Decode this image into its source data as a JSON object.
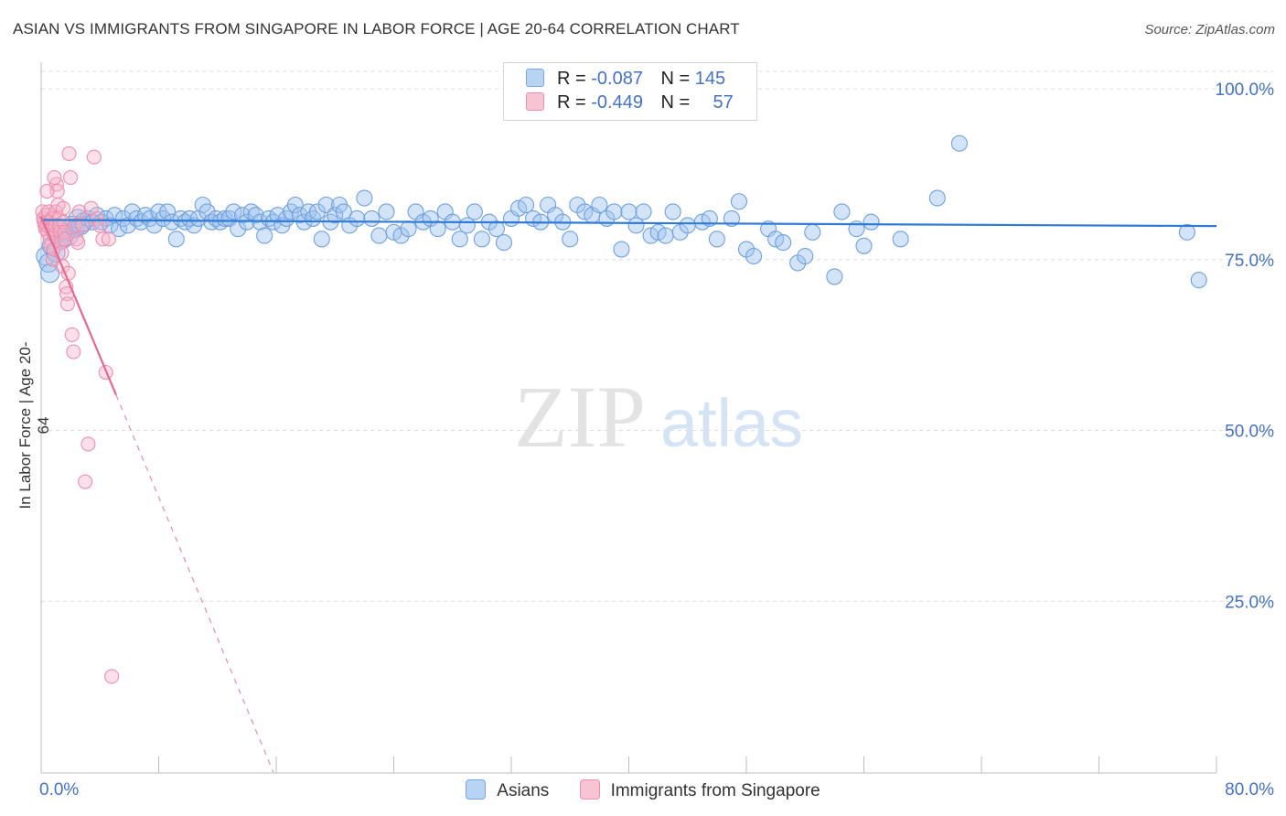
{
  "title": "ASIAN VS IMMIGRANTS FROM SINGAPORE IN LABOR FORCE | AGE 20-64 CORRELATION CHART",
  "source": "Source: ZipAtlas.com",
  "watermark": {
    "zip": "ZIP",
    "atlas": "atlas"
  },
  "legend": {
    "r_label": "R =",
    "n_label": "N =",
    "series": [
      {
        "name": "Asians",
        "r": "-0.087",
        "n": "145",
        "color": "#4a90e2",
        "fill": "#b8d4f5"
      },
      {
        "name": "Immigrants from Singapore",
        "r": "-0.449",
        "n": "57",
        "color": "#e8709a",
        "fill": "#f8c4d4"
      }
    ]
  },
  "chart_data": {
    "type": "scatter",
    "title": "ASIAN VS IMMIGRANTS FROM SINGAPORE IN LABOR FORCE | AGE 20-64 CORRELATION CHART",
    "xlabel": "",
    "ylabel": "In Labor Force | Age 20-64",
    "xlim": [
      0,
      80
    ],
    "ylim": [
      0,
      102
    ],
    "x_tick_labels": [
      "0.0%",
      "80.0%"
    ],
    "y_ticks": [
      25,
      50,
      75,
      100
    ],
    "y_tick_labels": [
      "25.0%",
      "50.0%",
      "75.0%",
      "100.0%"
    ],
    "grid": true,
    "legend_position": "top-center",
    "series": [
      {
        "name": "Asians",
        "trend": {
          "x": [
            0.0,
            80.0
          ],
          "y": [
            80.8,
            79.9
          ],
          "style": "solid"
        },
        "points": [
          [
            0.3,
            75.5
          ],
          [
            0.5,
            74.5
          ],
          [
            0.6,
            73
          ],
          [
            0.7,
            77
          ],
          [
            1.0,
            76
          ],
          [
            1.3,
            79
          ],
          [
            1.5,
            78
          ],
          [
            1.7,
            79
          ],
          [
            1.9,
            78.5
          ],
          [
            2.1,
            80
          ],
          [
            2.3,
            79.5
          ],
          [
            2.5,
            81
          ],
          [
            2.7,
            80
          ],
          [
            2.9,
            80.5
          ],
          [
            3.2,
            81
          ],
          [
            3.5,
            80.5
          ],
          [
            3.8,
            81.5
          ],
          [
            4.1,
            80.5
          ],
          [
            4.4,
            81
          ],
          [
            4.7,
            80
          ],
          [
            5.0,
            81.5
          ],
          [
            5.3,
            79.5
          ],
          [
            5.6,
            81
          ],
          [
            5.9,
            80
          ],
          [
            6.2,
            82
          ],
          [
            6.5,
            81
          ],
          [
            6.8,
            80.5
          ],
          [
            7.1,
            81.5
          ],
          [
            7.4,
            81
          ],
          [
            7.7,
            80
          ],
          [
            8.0,
            82
          ],
          [
            8.3,
            81
          ],
          [
            8.6,
            82
          ],
          [
            8.9,
            80.5
          ],
          [
            9.2,
            78
          ],
          [
            9.5,
            81
          ],
          [
            9.8,
            80.5
          ],
          [
            10.1,
            81
          ],
          [
            10.4,
            80
          ],
          [
            10.7,
            81
          ],
          [
            11.0,
            83
          ],
          [
            11.3,
            82
          ],
          [
            11.6,
            80.5
          ],
          [
            11.9,
            81
          ],
          [
            12.2,
            80.5
          ],
          [
            12.5,
            81
          ],
          [
            12.8,
            81
          ],
          [
            13.1,
            82
          ],
          [
            13.4,
            79.5
          ],
          [
            13.7,
            81.5
          ],
          [
            14.0,
            80.5
          ],
          [
            14.3,
            82
          ],
          [
            14.6,
            81.5
          ],
          [
            14.9,
            80.5
          ],
          [
            15.2,
            78.5
          ],
          [
            15.5,
            81
          ],
          [
            15.8,
            80.5
          ],
          [
            16.1,
            81.5
          ],
          [
            16.4,
            80
          ],
          [
            16.7,
            81
          ],
          [
            17.0,
            82
          ],
          [
            17.3,
            83
          ],
          [
            17.6,
            81.5
          ],
          [
            17.9,
            80.5
          ],
          [
            18.2,
            82
          ],
          [
            18.5,
            81
          ],
          [
            18.8,
            82
          ],
          [
            19.1,
            78
          ],
          [
            19.4,
            83
          ],
          [
            19.7,
            80.5
          ],
          [
            20.0,
            81.5
          ],
          [
            20.3,
            83
          ],
          [
            20.6,
            82
          ],
          [
            21.0,
            80
          ],
          [
            21.5,
            81
          ],
          [
            22.0,
            84
          ],
          [
            22.5,
            81
          ],
          [
            23.0,
            78.5
          ],
          [
            23.5,
            82
          ],
          [
            24.0,
            79
          ],
          [
            24.5,
            78.5
          ],
          [
            25.0,
            79.5
          ],
          [
            25.5,
            82
          ],
          [
            26.0,
            80.5
          ],
          [
            26.5,
            81
          ],
          [
            27.0,
            79.5
          ],
          [
            27.5,
            82
          ],
          [
            28.0,
            80.5
          ],
          [
            28.5,
            78
          ],
          [
            29.0,
            80
          ],
          [
            29.5,
            82
          ],
          [
            30.0,
            78
          ],
          [
            30.5,
            80.5
          ],
          [
            31.0,
            79.5
          ],
          [
            31.5,
            77.5
          ],
          [
            32.0,
            81
          ],
          [
            32.5,
            82.5
          ],
          [
            33.0,
            83
          ],
          [
            33.5,
            81
          ],
          [
            34.0,
            80.5
          ],
          [
            34.5,
            83
          ],
          [
            35.0,
            81.5
          ],
          [
            35.5,
            80.5
          ],
          [
            36.0,
            78
          ],
          [
            36.5,
            83
          ],
          [
            37.0,
            82
          ],
          [
            37.5,
            81.5
          ],
          [
            38.0,
            83
          ],
          [
            38.5,
            81
          ],
          [
            39.0,
            82
          ],
          [
            39.5,
            76.5
          ],
          [
            40.0,
            82
          ],
          [
            40.5,
            80
          ],
          [
            41.0,
            82
          ],
          [
            41.5,
            78.5
          ],
          [
            42.0,
            79
          ],
          [
            42.5,
            78.5
          ],
          [
            43.0,
            82
          ],
          [
            43.5,
            79
          ],
          [
            44.0,
            80
          ],
          [
            45.0,
            80.5
          ],
          [
            45.5,
            81
          ],
          [
            46.0,
            78
          ],
          [
            47.0,
            81
          ],
          [
            47.5,
            83.5
          ],
          [
            48.0,
            76.5
          ],
          [
            48.5,
            75.5
          ],
          [
            49.5,
            79.5
          ],
          [
            50.0,
            78
          ],
          [
            50.5,
            77.5
          ],
          [
            51.5,
            74.5
          ],
          [
            52.0,
            75.5
          ],
          [
            52.5,
            79
          ],
          [
            54.0,
            72.5
          ],
          [
            54.5,
            82
          ],
          [
            55.5,
            79.5
          ],
          [
            56.0,
            77
          ],
          [
            56.5,
            80.5
          ],
          [
            58.5,
            78
          ],
          [
            61.0,
            84
          ],
          [
            62.5,
            92
          ],
          [
            78.0,
            79
          ],
          [
            78.8,
            72
          ]
        ]
      },
      {
        "name": "Immigrants from Singapore",
        "trend": {
          "x": [
            0.0,
            5.1
          ],
          "y": [
            81.3,
            55.2
          ],
          "style": "solid"
        },
        "trend_extension": {
          "x": [
            5.1,
            15.8
          ],
          "y": [
            55.2,
            0
          ],
          "style": "dashed"
        },
        "points": [
          [
            0.1,
            82
          ],
          [
            0.15,
            81
          ],
          [
            0.2,
            80.5
          ],
          [
            0.25,
            80
          ],
          [
            0.3,
            79.5
          ],
          [
            0.35,
            81.5
          ],
          [
            0.4,
            80
          ],
          [
            0.45,
            79
          ],
          [
            0.5,
            82
          ],
          [
            0.55,
            80.5
          ],
          [
            0.6,
            78
          ],
          [
            0.65,
            77
          ],
          [
            0.7,
            79.5
          ],
          [
            0.75,
            81
          ],
          [
            0.8,
            75
          ],
          [
            0.85,
            76.5
          ],
          [
            0.9,
            78.5
          ],
          [
            0.95,
            80
          ],
          [
            1.0,
            82
          ],
          [
            1.05,
            86
          ],
          [
            1.1,
            85
          ],
          [
            1.15,
            83
          ],
          [
            1.2,
            81
          ],
          [
            1.25,
            80
          ],
          [
            1.3,
            79
          ],
          [
            1.35,
            77.5
          ],
          [
            1.4,
            76
          ],
          [
            1.45,
            74
          ],
          [
            1.5,
            82.5
          ],
          [
            1.55,
            80.5
          ],
          [
            1.6,
            79
          ],
          [
            1.65,
            78
          ],
          [
            1.7,
            71
          ],
          [
            1.75,
            70
          ],
          [
            1.8,
            68.5
          ],
          [
            1.85,
            73
          ],
          [
            1.9,
            90.5
          ],
          [
            2.0,
            87
          ],
          [
            2.1,
            64
          ],
          [
            2.2,
            61.5
          ],
          [
            2.3,
            80
          ],
          [
            2.4,
            78
          ],
          [
            2.5,
            77.5
          ],
          [
            2.6,
            82
          ],
          [
            2.8,
            80
          ],
          [
            3.0,
            42.5
          ],
          [
            3.2,
            48
          ],
          [
            3.4,
            82.5
          ],
          [
            3.6,
            90
          ],
          [
            3.8,
            81
          ],
          [
            4.0,
            80
          ],
          [
            4.2,
            78
          ],
          [
            4.4,
            58.5
          ],
          [
            4.6,
            78
          ],
          [
            4.8,
            14
          ],
          [
            0.4,
            85
          ],
          [
            0.9,
            87
          ]
        ]
      }
    ]
  }
}
